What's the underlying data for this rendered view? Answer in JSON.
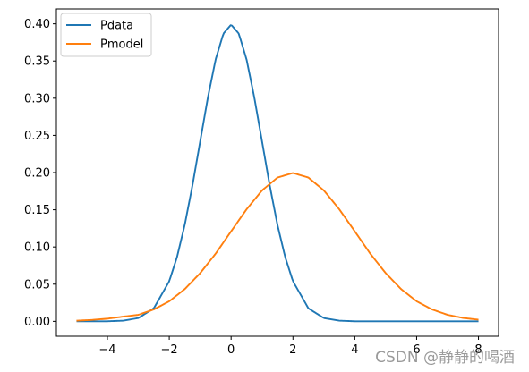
{
  "chart_data": {
    "type": "line",
    "title": "",
    "xlabel": "",
    "ylabel": "",
    "xlim": [
      -5.65,
      8.65
    ],
    "ylim": [
      -0.02,
      0.42
    ],
    "xticks": [
      -4,
      -2,
      0,
      2,
      4,
      6,
      8
    ],
    "xtick_labels": [
      "−4",
      "−2",
      "0",
      "2",
      "4",
      "6",
      "8"
    ],
    "yticks": [
      0.0,
      0.05,
      0.1,
      0.15,
      0.2,
      0.25,
      0.3,
      0.35,
      0.4
    ],
    "ytick_labels": [
      "0.00",
      "0.05",
      "0.10",
      "0.15",
      "0.20",
      "0.25",
      "0.30",
      "0.35",
      "0.40"
    ],
    "grid": false,
    "legend_position": "top-left",
    "series": [
      {
        "name": "Pdata",
        "color": "#1f77b4",
        "x": [
          -5,
          -4.5,
          -4,
          -3.5,
          -3,
          -2.5,
          -2,
          -1.75,
          -1.5,
          -1.25,
          -1,
          -0.75,
          -0.5,
          -0.25,
          0,
          0.25,
          0.5,
          0.75,
          1,
          1.25,
          1.5,
          1.75,
          2,
          2.5,
          3,
          3.5,
          4,
          4.5,
          5,
          6,
          7,
          8
        ],
        "y": [
          0.0,
          0.0,
          0.0001,
          0.0009,
          0.0044,
          0.0175,
          0.054,
          0.0863,
          0.1295,
          0.1826,
          0.242,
          0.3011,
          0.3521,
          0.3867,
          0.3989,
          0.3867,
          0.3521,
          0.3011,
          0.242,
          0.1826,
          0.1295,
          0.0863,
          0.054,
          0.0175,
          0.0044,
          0.0009,
          0.0001,
          0.0,
          0.0,
          0.0,
          0.0,
          0.0
        ]
      },
      {
        "name": "Pmodel",
        "color": "#ff7f0e",
        "x": [
          -5,
          -4.5,
          -4,
          -3.5,
          -3,
          -2.5,
          -2,
          -1.5,
          -1,
          -0.5,
          0,
          0.5,
          1,
          1.5,
          2,
          2.5,
          3,
          3.5,
          4,
          4.5,
          5,
          5.5,
          6,
          6.5,
          7,
          7.5,
          8
        ],
        "y": [
          0.0009,
          0.0019,
          0.0036,
          0.0063,
          0.0088,
          0.016,
          0.027,
          0.0433,
          0.0648,
          0.091,
          0.121,
          0.1506,
          0.176,
          0.1933,
          0.1995,
          0.1933,
          0.176,
          0.1506,
          0.121,
          0.091,
          0.0648,
          0.0433,
          0.027,
          0.016,
          0.0088,
          0.0046,
          0.0022
        ]
      }
    ]
  },
  "watermark": "CSDN @静静的喝酒"
}
